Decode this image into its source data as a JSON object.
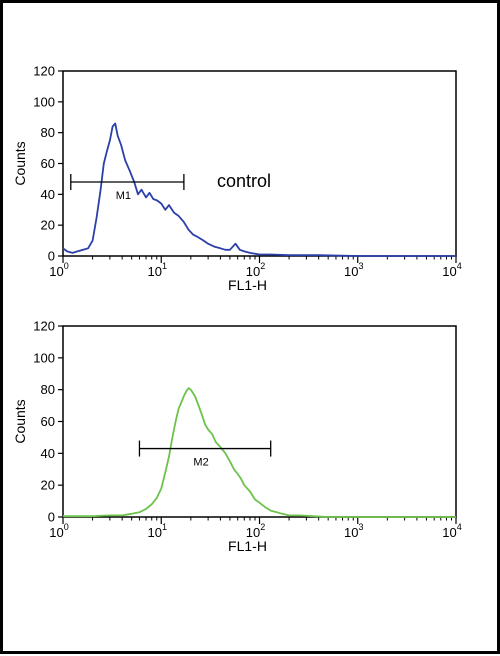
{
  "chart_data": [
    {
      "type": "line",
      "panel": "top",
      "xlabel": "FL1-H",
      "ylabel": "Counts",
      "xscale": "log",
      "xlim": [
        1,
        10000
      ],
      "ylim": [
        0,
        120
      ],
      "x_ticks": [
        {
          "base": "10",
          "exp": "0"
        },
        {
          "base": "10",
          "exp": "1"
        },
        {
          "base": "10",
          "exp": "2"
        },
        {
          "base": "10",
          "exp": "3"
        },
        {
          "base": "10",
          "exp": "4"
        }
      ],
      "y_ticks": [
        "0",
        "20",
        "40",
        "60",
        "80",
        "100",
        "120"
      ],
      "annotation": "control",
      "gate": {
        "label": "M1",
        "x_start": 1.2,
        "x_end": 17,
        "y": 48
      },
      "series": [
        {
          "color": "#2b3fa8",
          "x": [
            1,
            1.1,
            1.25,
            1.4,
            1.6,
            1.8,
            2.0,
            2.2,
            2.4,
            2.6,
            2.8,
            3.0,
            3.2,
            3.4,
            3.6,
            3.9,
            4.3,
            4.8,
            5.3,
            5.8,
            6.3,
            7.0,
            7.6,
            8.3,
            9.1,
            10,
            11,
            12,
            13.5,
            15,
            17,
            19,
            21,
            24,
            27,
            30,
            35,
            40,
            45,
            50,
            57,
            63,
            70,
            80,
            100,
            130,
            200,
            400,
            1000,
            10000
          ],
          "y": [
            5,
            3,
            2,
            3,
            4,
            5,
            10,
            25,
            42,
            60,
            68,
            75,
            84,
            86,
            78,
            72,
            62,
            55,
            48,
            40,
            43,
            38,
            41,
            37,
            36,
            34,
            30,
            33,
            28,
            26,
            22,
            17,
            14,
            12,
            10,
            8,
            6,
            5,
            4,
            4,
            8,
            4,
            3,
            2,
            1,
            1,
            0.5,
            0.5,
            0,
            0
          ]
        }
      ]
    },
    {
      "type": "line",
      "panel": "bottom",
      "xlabel": "FL1-H",
      "ylabel": "Counts",
      "xscale": "log",
      "xlim": [
        1,
        10000
      ],
      "ylim": [
        0,
        120
      ],
      "x_ticks": [
        {
          "base": "10",
          "exp": "0"
        },
        {
          "base": "10",
          "exp": "1"
        },
        {
          "base": "10",
          "exp": "2"
        },
        {
          "base": "10",
          "exp": "3"
        },
        {
          "base": "10",
          "exp": "4"
        }
      ],
      "y_ticks": [
        "0",
        "20",
        "40",
        "60",
        "80",
        "100",
        "120"
      ],
      "gate": {
        "label": "M2",
        "x_start": 6,
        "x_end": 130,
        "y": 43
      },
      "series": [
        {
          "color": "#6cc24a",
          "x": [
            1,
            2,
            3,
            4,
            5,
            6,
            7,
            8,
            9,
            10,
            11,
            12,
            13,
            14,
            15,
            16,
            17,
            18,
            19,
            20,
            21,
            22,
            24,
            26,
            28,
            30,
            33,
            36,
            40,
            45,
            50,
            55,
            60,
            65,
            70,
            80,
            90,
            100,
            115,
            130,
            150,
            170,
            200,
            250,
            350,
            500,
            1000,
            10000
          ],
          "y": [
            0.5,
            0.5,
            1,
            1,
            2,
            3,
            5,
            8,
            12,
            18,
            28,
            38,
            50,
            60,
            68,
            72,
            76,
            79,
            81,
            80,
            78,
            76,
            70,
            64,
            58,
            55,
            52,
            47,
            44,
            40,
            35,
            30,
            27,
            24,
            20,
            16,
            11,
            9,
            6,
            4,
            3,
            2,
            1,
            1,
            0.5,
            0,
            0,
            0
          ]
        }
      ]
    }
  ]
}
